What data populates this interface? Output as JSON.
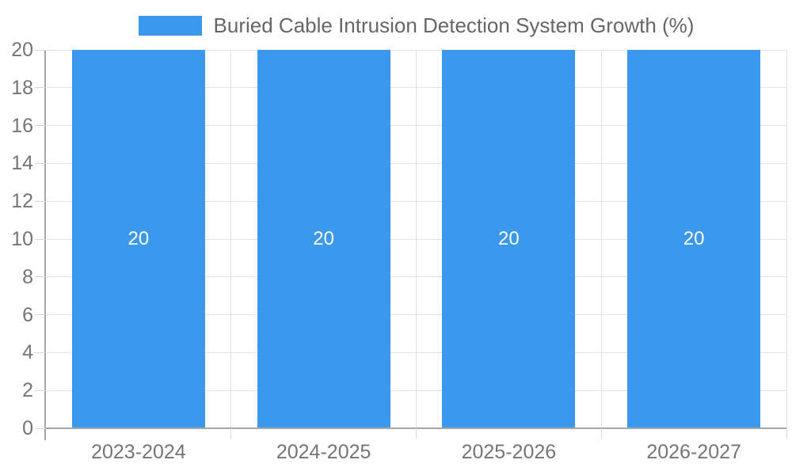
{
  "chart_data": {
    "type": "bar",
    "title": "Buried Cable Intrusion Detection System Growth (%)",
    "legend_position": "top-center",
    "categories": [
      "2023-2024",
      "2024-2025",
      "2025-2026",
      "2026-2027"
    ],
    "series": [
      {
        "name": "Buried Cable Intrusion Detection System Growth (%)",
        "values": [
          20,
          20,
          20,
          20
        ]
      }
    ],
    "data_labels": [
      "20",
      "20",
      "20",
      "20"
    ],
    "xlabel": "",
    "ylabel": "",
    "ylim": [
      0,
      20
    ],
    "ytick_step": 2,
    "grid": true,
    "colors": {
      "bar": "#3B99ED",
      "bar_label": "#FFFFFF",
      "legend_text": "#666666",
      "axis_label": "#757575",
      "gridline": "#E3E3E3",
      "tick": "#D8D8D8",
      "axis_line": "#A6A6A6",
      "background": "#FFFFFF"
    }
  }
}
